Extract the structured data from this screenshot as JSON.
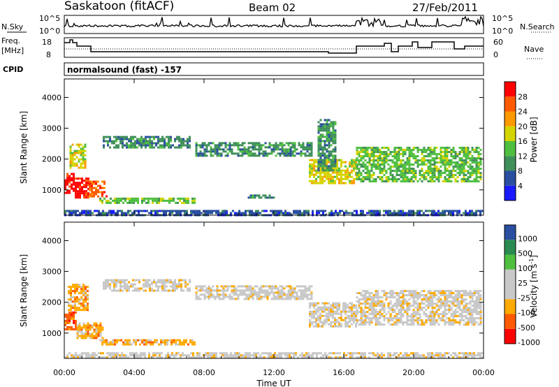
{
  "header": {
    "station": "Saskatoon (fitACF)",
    "beam": "Beam 02",
    "date": "27/Feb/2011"
  },
  "summary_panels": {
    "nsky_label": "N.Sky",
    "nsky_ticks": [
      "10^5",
      "10^0"
    ],
    "nsearch_label": "N.Search",
    "nsearch_ticks": [
      "10^5",
      "10^0"
    ],
    "freq_label": "Freq.",
    "freq_unit": "[MHz]",
    "freq_ticks": [
      "18",
      "8"
    ],
    "nave_label": "Nave",
    "nave_ticks": [
      "60",
      "0"
    ],
    "cpid_label": "CPID",
    "cpid_value": "normalsound (fast) -157"
  },
  "colors": {
    "power": [
      "#1a1aff",
      "#2a4fa0",
      "#3f8f5a",
      "#4fbf3f",
      "#d4d400",
      "#ff9900",
      "#ff5a00",
      "#ff0000"
    ],
    "velocity": [
      "#ff0000",
      "#ff5a00",
      "#ffaa00",
      "#c8c8c8",
      "#c8c8c8",
      "#4fbf3f",
      "#2a8a50",
      "#2a4fa0"
    ]
  },
  "chart_data": [
    {
      "type": "heatmap",
      "name": "power",
      "xlabel": "Time UT",
      "ylabel": "Slant Range [km]",
      "xlim": [
        0,
        24
      ],
      "ylim": [
        180,
        4600
      ],
      "x_ticks": [
        "00:00",
        "04:00",
        "08:00",
        "12:00",
        "16:00",
        "20:00",
        "00:00"
      ],
      "y_ticks": [
        "1000",
        "2000",
        "3000",
        "4000"
      ],
      "colorbar_label": "Power [dB]",
      "colorbar_ticks": [
        "4",
        "8",
        "12",
        "16",
        "20",
        "24",
        "28"
      ],
      "bands": [
        {
          "t0": 0.0,
          "t1": 0.6,
          "r0": 900,
          "r1": 1550,
          "level": 7
        },
        {
          "t0": 0.6,
          "t1": 1.4,
          "r0": 750,
          "r1": 1400,
          "level": 7
        },
        {
          "t0": 1.4,
          "t1": 2.4,
          "r0": 800,
          "r1": 1300,
          "level": 6
        },
        {
          "t0": 0.3,
          "t1": 1.2,
          "r0": 1700,
          "r1": 2500,
          "level": 4
        },
        {
          "t0": 2.0,
          "t1": 7.5,
          "r0": 550,
          "r1": 750,
          "level": 3
        },
        {
          "t0": 2.2,
          "t1": 7.2,
          "r0": 2400,
          "r1": 2750,
          "level": 2
        },
        {
          "t0": 7.5,
          "t1": 14.2,
          "r0": 2100,
          "r1": 2550,
          "level": 2
        },
        {
          "t0": 14.0,
          "t1": 16.7,
          "r0": 1200,
          "r1": 2000,
          "level": 4
        },
        {
          "t0": 14.5,
          "t1": 15.5,
          "r0": 1600,
          "r1": 3300,
          "level": 2
        },
        {
          "t0": 16.7,
          "t1": 23.9,
          "r0": 1300,
          "r1": 2400,
          "level": 3
        },
        {
          "t0": 10.5,
          "t1": 12.0,
          "r0": 750,
          "r1": 850,
          "level": 2
        },
        {
          "t0": 0.0,
          "t1": 23.9,
          "r0": 200,
          "r1": 350,
          "level": 1
        }
      ]
    },
    {
      "type": "heatmap",
      "name": "velocity",
      "xlabel": "Time UT",
      "ylabel": "Slant Range [km]",
      "xlim": [
        0,
        24
      ],
      "ylim": [
        180,
        4600
      ],
      "x_ticks": [
        "00:00",
        "04:00",
        "08:00",
        "12:00",
        "16:00",
        "20:00",
        "00:00"
      ],
      "y_ticks": [
        "1000",
        "2000",
        "3000",
        "4000"
      ],
      "colorbar_label": "Velocity [m s^-1]",
      "colorbar_ticks": [
        "1000",
        "500",
        "100",
        "25",
        "-25",
        "-100",
        "-500",
        "-1000"
      ],
      "bands": [
        {
          "t0": 0.0,
          "t1": 0.7,
          "r0": 1100,
          "r1": 1700,
          "level": 1
        },
        {
          "t0": 0.7,
          "t1": 2.2,
          "r0": 850,
          "r1": 1350,
          "level": 2
        },
        {
          "t0": 0.2,
          "t1": 1.3,
          "r0": 1750,
          "r1": 2600,
          "level": 2
        },
        {
          "t0": 2.0,
          "t1": 7.5,
          "r0": 600,
          "r1": 800,
          "level": 2
        },
        {
          "t0": 2.2,
          "t1": 7.2,
          "r0": 2400,
          "r1": 2750,
          "level": 3
        },
        {
          "t0": 7.5,
          "t1": 14.2,
          "r0": 2100,
          "r1": 2550,
          "level": 3
        },
        {
          "t0": 14.0,
          "t1": 16.7,
          "r0": 1200,
          "r1": 2000,
          "level": 3
        },
        {
          "t0": 16.7,
          "t1": 23.9,
          "r0": 1300,
          "r1": 2400,
          "level": 3
        },
        {
          "t0": 0.0,
          "t1": 23.9,
          "r0": 200,
          "r1": 380,
          "level": 3
        }
      ]
    }
  ]
}
